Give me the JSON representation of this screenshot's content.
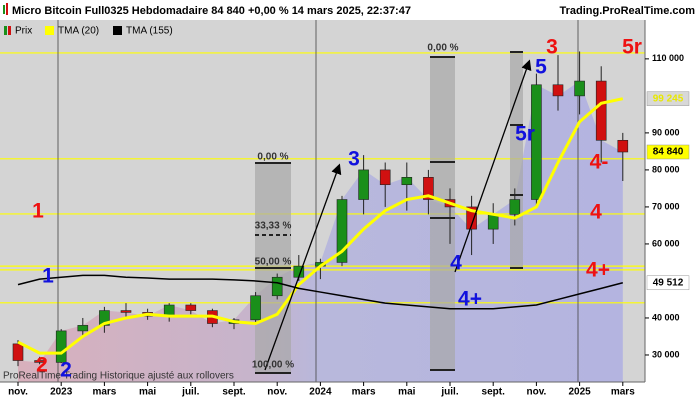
{
  "chart_data": {
    "type": "candlestick",
    "title": "Micro Bitcoin Full0325 Hebdomadaire 84 840 +0,00 % 14 mars 2025, 22:37:47",
    "source": "Trading.ProRealTime.com",
    "footer": "ProRealTime Trading  Historique ajusté aux rollovers",
    "categories": [
      "nov.",
      null,
      "2023",
      null,
      "mars",
      null,
      "mai",
      null,
      "juil.",
      null,
      "sept.",
      null,
      "nov.",
      null,
      "2024",
      null,
      "mars",
      null,
      "mai",
      null,
      "juil.",
      null,
      "sept.",
      null,
      "nov.",
      null,
      "2025",
      null,
      "mars"
    ],
    "price": {
      "name": "Prix",
      "up_color": "#1a8f1a",
      "down_color": "#d01010",
      "open": [
        33000,
        28500,
        28000,
        36500,
        38000,
        42000,
        41500,
        40500,
        43500,
        42000,
        38500,
        39500,
        46000,
        51000,
        54000,
        55000,
        72000,
        80000,
        76000,
        78000,
        72000,
        70000,
        64000,
        68000,
        72000,
        103000,
        100000,
        104000,
        88000
      ],
      "high": [
        34000,
        29500,
        37000,
        40000,
        43000,
        44000,
        42500,
        44000,
        44000,
        42500,
        40000,
        47000,
        52000,
        57000,
        56000,
        73000,
        84000,
        82000,
        82000,
        80000,
        75000,
        73000,
        71000,
        75000,
        106000,
        111000,
        112000,
        108000,
        90000
      ],
      "low": [
        27000,
        27500,
        27800,
        35000,
        36000,
        40000,
        39500,
        39000,
        41000,
        37500,
        37000,
        38500,
        45000,
        50000,
        50500,
        54000,
        68000,
        70000,
        69000,
        68000,
        60000,
        57000,
        60000,
        65000,
        70000,
        96000,
        95000,
        82000,
        77000
      ],
      "close": [
        28500,
        28000,
        36500,
        38000,
        42000,
        41500,
        40500,
        43500,
        42000,
        38500,
        39500,
        46000,
        51000,
        54000,
        55000,
        72000,
        80000,
        76000,
        78000,
        72000,
        70000,
        64000,
        68000,
        72000,
        103000,
        100000,
        104000,
        88000,
        84840
      ]
    },
    "series": [
      {
        "name": "TMA (20)",
        "color": "#ffff00",
        "values": [
          33500,
          30500,
          30500,
          35000,
          38500,
          40000,
          41000,
          40500,
          40500,
          40500,
          39000,
          38500,
          41000,
          49000,
          54000,
          58000,
          64000,
          69000,
          72000,
          73000,
          71000,
          69000,
          68000,
          67000,
          70000,
          82000,
          93000,
          98000,
          99245
        ]
      },
      {
        "name": "TMA (155)",
        "color": "#000000",
        "values": [
          49000,
          50500,
          51000,
          51500,
          51500,
          51000,
          50800,
          50500,
          50500,
          50500,
          50300,
          50000,
          49500,
          48000,
          47000,
          46000,
          45000,
          44000,
          43500,
          43000,
          42500,
          42500,
          42500,
          43000,
          43500,
          45000,
          46500,
          48000,
          49512
        ]
      }
    ],
    "levels": [
      111600,
      83000,
      68100,
      54000,
      53000,
      44100
    ],
    "level_color": "#ffff00",
    "price_tags": [
      {
        "value": 99245,
        "label": "99 245",
        "bg": "#d8d8d8",
        "fg": "#e8e800"
      },
      {
        "value": 84840,
        "label": "84 840",
        "bg": "#ffff00",
        "fg": "#000000"
      },
      {
        "value": 49512,
        "label": "49 512",
        "bg": "#ffffff",
        "fg": "#000000"
      }
    ],
    "ylim": [
      22700,
      120500
    ],
    "yticks": [
      {
        "value": 30000,
        "label": "30 000"
      },
      {
        "value": 40000,
        "label": "40 000"
      },
      {
        "value": 60000,
        "label": "60 000"
      },
      {
        "value": 70000,
        "label": "70 000"
      },
      {
        "value": 80000,
        "label": "80 000"
      },
      {
        "value": 90000,
        "label": "90 000"
      },
      {
        "value": 110000,
        "label": "110 000"
      }
    ],
    "fib_labels": [
      "0,00 %",
      "33,33 %",
      "50,00 %",
      "100,00 %",
      "0,00 %"
    ],
    "annotations": [
      {
        "text": "1",
        "color": "#ee1111"
      },
      {
        "text": "1",
        "color": "#1111dd"
      },
      {
        "text": "2",
        "color": "#ee1111"
      },
      {
        "text": "2",
        "color": "#1111dd"
      },
      {
        "text": "3",
        "color": "#1111dd"
      },
      {
        "text": "4",
        "color": "#1111dd"
      },
      {
        "text": "4+",
        "color": "#1111dd"
      },
      {
        "text": "5",
        "color": "#1111dd"
      },
      {
        "text": "5r",
        "color": "#1111dd"
      },
      {
        "text": "3",
        "color": "#ee1111"
      },
      {
        "text": "5r",
        "color": "#ee1111"
      },
      {
        "text": "4-",
        "color": "#ee1111"
      },
      {
        "text": "4",
        "color": "#ee1111"
      },
      {
        "text": "4+",
        "color": "#ee1111"
      }
    ]
  }
}
